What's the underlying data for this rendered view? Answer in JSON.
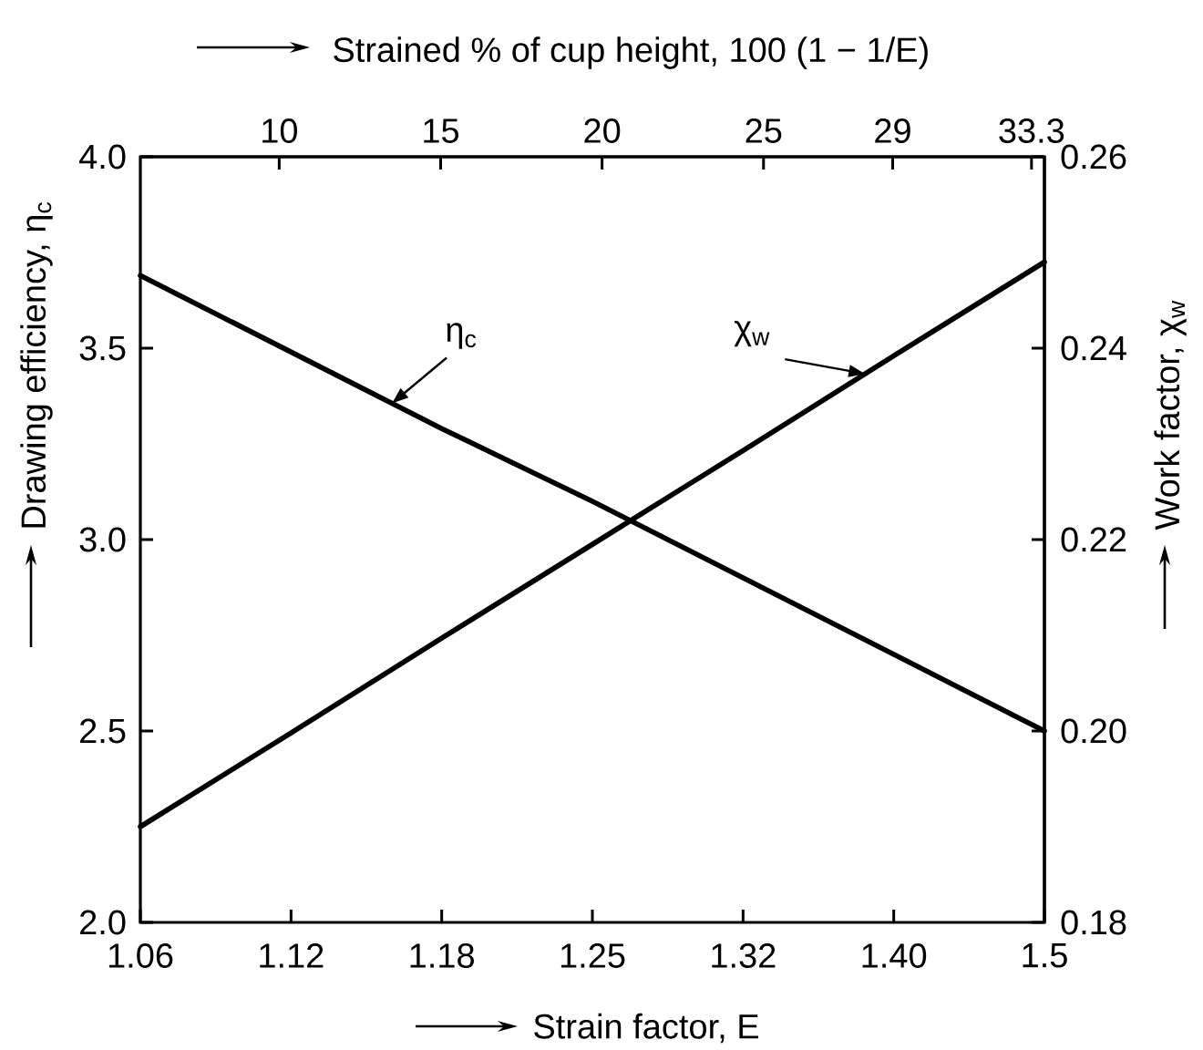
{
  "chart_data": {
    "type": "line",
    "x2label": "Strained % of cup height, 100 (1 − 1/E)",
    "xlabel": "Strain factor, E",
    "ylabel": "Drawing efficiency, η$_{c}$",
    "y2label": "Work factor, χ$_{w}$",
    "categories": [
      "1.06",
      "1.12",
      "1.18",
      "1.25",
      "1.32",
      "1.40",
      "1.5"
    ],
    "series": [
      {
        "name": "η$_{c}$",
        "color": "#000000",
        "values": [
          3.69,
          3.49,
          3.29,
          3.1,
          2.9,
          2.7,
          2.5
        ]
      },
      {
        "name": "χ$_{w}$",
        "color": "#000000",
        "axis": "y2",
        "values": [
          0.19,
          0.1998,
          0.2097,
          0.2195,
          0.2293,
          0.2392,
          0.249
        ]
      }
    ],
    "ylim": [
      2,
      4
    ],
    "yticks": [
      {
        "value": 2,
        "label": "2.0"
      },
      2.5,
      {
        "value": 3,
        "label": "3.0"
      },
      3.5,
      {
        "value": 4,
        "label": "4.0"
      }
    ],
    "y2lim": [
      0.18,
      0.26
    ],
    "y2ticks": [
      0.18,
      {
        "value": 0.2,
        "label": "0.20"
      },
      0.22,
      0.24,
      0.26
    ],
    "x2lim": [
      5.7,
      33.7
    ],
    "x2ticks": [
      10,
      15,
      20,
      25,
      29,
      33.3
    ],
    "marker": "none",
    "line_style": "solid"
  }
}
